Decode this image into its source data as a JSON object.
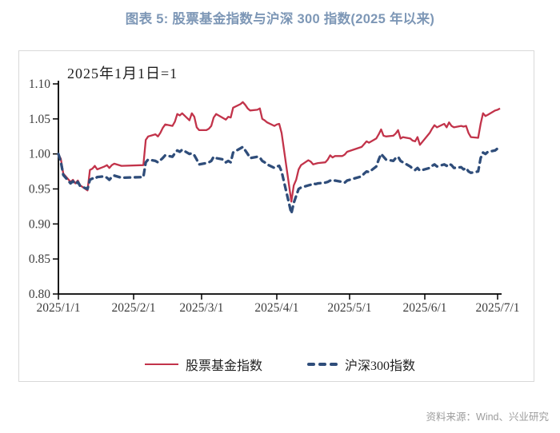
{
  "page": {
    "title": "图表 5: 股票基金指数与沪深 300 指数(2025 年以来)",
    "source": "资料来源：Wind、兴业研究"
  },
  "colors": {
    "title": "#7d97b6",
    "source": "#9c9c9c",
    "axis": "#000000",
    "frame_border": "#d9d9d9",
    "fund_index_red": "#c2334a",
    "csi300_navy": "#2f4d7a"
  },
  "chart_data": {
    "type": "line",
    "title": "图表 5: 股票基金指数与沪深 300 指数(2025 年以来)",
    "annotation": "2025年1月1日=1",
    "xlabel": "",
    "ylabel": "",
    "ylim": [
      0.8,
      1.1
    ],
    "grid": false,
    "legend_position": "bottom",
    "y_ticks": [
      "0.80",
      "0.85",
      "0.90",
      "0.95",
      "1.00",
      "1.05",
      "1.10"
    ],
    "x_ticks": [
      "2025/1/1",
      "2025/2/1",
      "2025/3/1",
      "2025/4/1",
      "2025/5/1",
      "2025/6/1",
      "2025/7/1"
    ],
    "series": [
      {
        "name": "股票基金指数",
        "color": "#c2334a",
        "style": "solid",
        "points": [
          [
            "1/1",
            1.0
          ],
          [
            "1/2",
            0.993
          ],
          [
            "1/3",
            0.972
          ],
          [
            "1/6",
            0.96
          ],
          [
            "1/7",
            0.963
          ],
          [
            "1/8",
            0.958
          ],
          [
            "1/9",
            0.962
          ],
          [
            "1/10",
            0.955
          ],
          [
            "1/13",
            0.948
          ],
          [
            "1/14",
            0.977
          ],
          [
            "1/15",
            0.979
          ],
          [
            "1/16",
            0.983
          ],
          [
            "1/17",
            0.978
          ],
          [
            "1/20",
            0.982
          ],
          [
            "1/21",
            0.984
          ],
          [
            "1/22",
            0.98
          ],
          [
            "1/23",
            0.984
          ],
          [
            "1/24",
            0.986
          ],
          [
            "1/27",
            0.983
          ],
          [
            "2/5",
            0.984
          ],
          [
            "2/6",
            1.02
          ],
          [
            "2/7",
            1.025
          ],
          [
            "2/10",
            1.028
          ],
          [
            "2/11",
            1.025
          ],
          [
            "2/12",
            1.03
          ],
          [
            "2/13",
            1.037
          ],
          [
            "2/14",
            1.042
          ],
          [
            "2/17",
            1.04
          ],
          [
            "2/18",
            1.046
          ],
          [
            "2/19",
            1.057
          ],
          [
            "2/20",
            1.055
          ],
          [
            "2/21",
            1.058
          ],
          [
            "2/24",
            1.048
          ],
          [
            "2/25",
            1.058
          ],
          [
            "2/26",
            1.053
          ],
          [
            "2/27",
            1.038
          ],
          [
            "2/28",
            1.034
          ],
          [
            "3/3",
            1.034
          ],
          [
            "3/4",
            1.036
          ],
          [
            "3/5",
            1.04
          ],
          [
            "3/6",
            1.052
          ],
          [
            "3/7",
            1.057
          ],
          [
            "3/10",
            1.051
          ],
          [
            "3/11",
            1.049
          ],
          [
            "3/12",
            1.053
          ],
          [
            "3/13",
            1.052
          ],
          [
            "3/14",
            1.066
          ],
          [
            "3/17",
            1.071
          ],
          [
            "3/18",
            1.074
          ],
          [
            "3/19",
            1.07
          ],
          [
            "3/20",
            1.065
          ],
          [
            "3/21",
            1.062
          ],
          [
            "3/24",
            1.063
          ],
          [
            "3/25",
            1.065
          ],
          [
            "3/26",
            1.05
          ],
          [
            "3/27",
            1.048
          ],
          [
            "3/28",
            1.045
          ],
          [
            "3/31",
            1.04
          ],
          [
            "4/1",
            1.042
          ],
          [
            "4/2",
            1.043
          ],
          [
            "4/3",
            1.03
          ],
          [
            "4/7",
            0.932
          ],
          [
            "4/8",
            0.955
          ],
          [
            "4/9",
            0.963
          ],
          [
            "4/10",
            0.978
          ],
          [
            "4/11",
            0.984
          ],
          [
            "4/14",
            0.991
          ],
          [
            "4/15",
            0.989
          ],
          [
            "4/16",
            0.985
          ],
          [
            "4/17",
            0.986
          ],
          [
            "4/18",
            0.987
          ],
          [
            "4/21",
            0.988
          ],
          [
            "4/22",
            0.992
          ],
          [
            "4/23",
            0.998
          ],
          [
            "4/24",
            0.995
          ],
          [
            "4/25",
            0.997
          ],
          [
            "4/28",
            0.997
          ],
          [
            "4/29",
            0.999
          ],
          [
            "4/30",
            1.003
          ],
          [
            "5/6",
            1.01
          ],
          [
            "5/7",
            1.014
          ],
          [
            "5/8",
            1.018
          ],
          [
            "5/9",
            1.016
          ],
          [
            "5/12",
            1.022
          ],
          [
            "5/13",
            1.028
          ],
          [
            "5/14",
            1.035
          ],
          [
            "5/15",
            1.026
          ],
          [
            "5/16",
            1.025
          ],
          [
            "5/19",
            1.026
          ],
          [
            "5/20",
            1.029
          ],
          [
            "5/21",
            1.034
          ],
          [
            "5/22",
            1.022
          ],
          [
            "5/23",
            1.024
          ],
          [
            "5/26",
            1.022
          ],
          [
            "5/27",
            1.019
          ],
          [
            "5/28",
            1.018
          ],
          [
            "5/29",
            1.024
          ],
          [
            "5/30",
            1.013
          ],
          [
            "6/3",
            1.03
          ],
          [
            "6/4",
            1.036
          ],
          [
            "6/5",
            1.041
          ],
          [
            "6/6",
            1.038
          ],
          [
            "6/9",
            1.043
          ],
          [
            "6/10",
            1.038
          ],
          [
            "6/11",
            1.045
          ],
          [
            "6/12",
            1.04
          ],
          [
            "6/13",
            1.038
          ],
          [
            "6/16",
            1.04
          ],
          [
            "6/17",
            1.039
          ],
          [
            "6/18",
            1.04
          ],
          [
            "6/19",
            1.03
          ],
          [
            "6/20",
            1.024
          ],
          [
            "6/23",
            1.023
          ],
          [
            "6/24",
            1.043
          ],
          [
            "6/25",
            1.058
          ],
          [
            "6/26",
            1.054
          ],
          [
            "6/27",
            1.056
          ],
          [
            "6/30",
            1.062
          ],
          [
            "7/1",
            1.063
          ],
          [
            "7/2",
            1.065
          ]
        ]
      },
      {
        "name": "沪深300指数",
        "color": "#2f4d7a",
        "style": "dashed",
        "points": [
          [
            "1/1",
            1.0
          ],
          [
            "1/2",
            0.989
          ],
          [
            "1/3",
            0.97
          ],
          [
            "1/6",
            0.958
          ],
          [
            "1/7",
            0.961
          ],
          [
            "1/8",
            0.957
          ],
          [
            "1/9",
            0.96
          ],
          [
            "1/10",
            0.954
          ],
          [
            "1/13",
            0.95
          ],
          [
            "1/14",
            0.963
          ],
          [
            "1/15",
            0.965
          ],
          [
            "1/16",
            0.964
          ],
          [
            "1/17",
            0.967
          ],
          [
            "1/20",
            0.968
          ],
          [
            "1/21",
            0.966
          ],
          [
            "1/22",
            0.963
          ],
          [
            "1/23",
            0.967
          ],
          [
            "1/24",
            0.969
          ],
          [
            "1/27",
            0.966
          ],
          [
            "2/5",
            0.967
          ],
          [
            "2/6",
            0.988
          ],
          [
            "2/7",
            0.992
          ],
          [
            "2/10",
            0.99
          ],
          [
            "2/11",
            0.988
          ],
          [
            "2/12",
            0.991
          ],
          [
            "2/13",
            0.994
          ],
          [
            "2/14",
            0.998
          ],
          [
            "2/17",
            0.996
          ],
          [
            "2/18",
            1.001
          ],
          [
            "2/19",
            1.005
          ],
          [
            "2/20",
            1.003
          ],
          [
            "2/21",
            1.006
          ],
          [
            "2/24",
            1.0
          ],
          [
            "2/25",
            1.001
          ],
          [
            "2/26",
            0.998
          ],
          [
            "2/27",
            0.992
          ],
          [
            "2/28",
            0.985
          ],
          [
            "3/3",
            0.987
          ],
          [
            "3/4",
            0.988
          ],
          [
            "3/5",
            0.99
          ],
          [
            "3/6",
            0.996
          ],
          [
            "3/7",
            0.994
          ],
          [
            "3/10",
            0.992
          ],
          [
            "3/11",
            0.988
          ],
          [
            "3/12",
            0.99
          ],
          [
            "3/13",
            0.988
          ],
          [
            "3/14",
            1.002
          ],
          [
            "3/17",
            1.008
          ],
          [
            "3/18",
            1.01
          ],
          [
            "3/19",
            1.005
          ],
          [
            "3/20",
            1.0
          ],
          [
            "3/21",
            0.994
          ],
          [
            "3/24",
            0.996
          ],
          [
            "3/25",
            0.995
          ],
          [
            "3/26",
            0.99
          ],
          [
            "3/27",
            0.988
          ],
          [
            "3/28",
            0.985
          ],
          [
            "3/31",
            0.98
          ],
          [
            "4/1",
            0.982
          ],
          [
            "4/2",
            0.983
          ],
          [
            "4/3",
            0.975
          ],
          [
            "4/7",
            0.915
          ],
          [
            "4/8",
            0.93
          ],
          [
            "4/9",
            0.94
          ],
          [
            "4/10",
            0.95
          ],
          [
            "4/11",
            0.952
          ],
          [
            "4/14",
            0.955
          ],
          [
            "4/15",
            0.956
          ],
          [
            "4/16",
            0.958
          ],
          [
            "4/17",
            0.957
          ],
          [
            "4/18",
            0.958
          ],
          [
            "4/21",
            0.959
          ],
          [
            "4/22",
            0.96
          ],
          [
            "4/23",
            0.962
          ],
          [
            "4/24",
            0.961
          ],
          [
            "4/25",
            0.962
          ],
          [
            "4/28",
            0.96
          ],
          [
            "4/29",
            0.959
          ],
          [
            "4/30",
            0.962
          ],
          [
            "5/6",
            0.968
          ],
          [
            "5/7",
            0.972
          ],
          [
            "5/8",
            0.975
          ],
          [
            "5/9",
            0.974
          ],
          [
            "5/12",
            0.982
          ],
          [
            "5/13",
            0.992
          ],
          [
            "5/14",
            1.0
          ],
          [
            "5/15",
            0.996
          ],
          [
            "5/16",
            0.992
          ],
          [
            "5/19",
            0.99
          ],
          [
            "5/20",
            0.994
          ],
          [
            "5/21",
            0.996
          ],
          [
            "5/22",
            0.99
          ],
          [
            "5/23",
            0.988
          ],
          [
            "5/26",
            0.982
          ],
          [
            "5/27",
            0.979
          ],
          [
            "5/28",
            0.977
          ],
          [
            "5/29",
            0.98
          ],
          [
            "5/30",
            0.976
          ],
          [
            "6/3",
            0.98
          ],
          [
            "6/4",
            0.983
          ],
          [
            "6/5",
            0.985
          ],
          [
            "6/6",
            0.982
          ],
          [
            "6/9",
            0.985
          ],
          [
            "6/10",
            0.983
          ],
          [
            "6/11",
            0.986
          ],
          [
            "6/12",
            0.984
          ],
          [
            "6/13",
            0.98
          ],
          [
            "6/16",
            0.981
          ],
          [
            "6/17",
            0.978
          ],
          [
            "6/18",
            0.98
          ],
          [
            "6/19",
            0.975
          ],
          [
            "6/20",
            0.973
          ],
          [
            "6/23",
            0.975
          ],
          [
            "6/24",
            0.994
          ],
          [
            "6/25",
            1.002
          ],
          [
            "6/26",
            1.0
          ],
          [
            "6/27",
            1.003
          ],
          [
            "6/30",
            1.005
          ],
          [
            "7/1",
            1.008
          ],
          [
            "7/2",
            1.012
          ]
        ]
      }
    ]
  }
}
